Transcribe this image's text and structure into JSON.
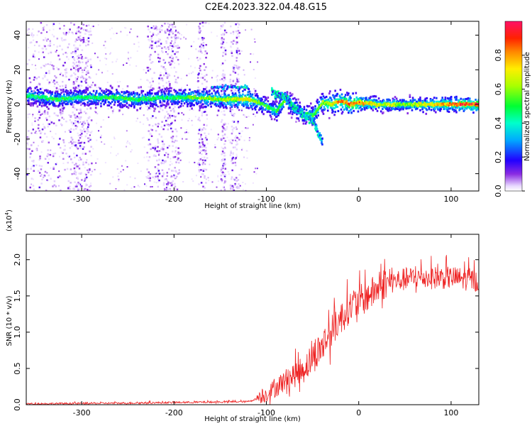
{
  "title": "C2E4.2023.322.04.48.G15",
  "chart_data": [
    {
      "type": "heatmap",
      "xlabel": "Height of straight line (km)",
      "ylabel": "Frequency (Hz)",
      "xlim": [
        -360,
        130
      ],
      "ylim": [
        -50,
        48
      ],
      "x_ticks": [
        -300,
        -200,
        -100,
        0,
        100
      ],
      "y_ticks": [
        -40,
        -20,
        0,
        20,
        40
      ],
      "colorbar": {
        "label": "Normalized spectral amplitude",
        "range": [
          0,
          1
        ],
        "ticks": [
          0.0,
          0.2,
          0.4,
          0.6,
          0.8
        ],
        "colormap": "rainbow"
      },
      "main_track": [
        {
          "x": -355,
          "y": 5,
          "v": 0.45
        },
        {
          "x": -330,
          "y": 3,
          "v": 0.5
        },
        {
          "x": -300,
          "y": 4,
          "v": 0.45
        },
        {
          "x": -270,
          "y": 4,
          "v": 0.5
        },
        {
          "x": -240,
          "y": 3,
          "v": 0.5
        },
        {
          "x": -210,
          "y": 4,
          "v": 0.45
        },
        {
          "x": -180,
          "y": 4,
          "v": 0.55
        },
        {
          "x": -150,
          "y": 3,
          "v": 0.6
        },
        {
          "x": -120,
          "y": 3,
          "v": 0.7
        },
        {
          "x": -105,
          "y": 0,
          "v": 0.5
        },
        {
          "x": -90,
          "y": -4,
          "v": 0.5
        },
        {
          "x": -80,
          "y": 3,
          "v": 0.55
        },
        {
          "x": -70,
          "y": -2,
          "v": 0.5
        },
        {
          "x": -60,
          "y": -6,
          "v": 0.5
        },
        {
          "x": -50,
          "y": -6,
          "v": 0.5
        },
        {
          "x": -40,
          "y": 1,
          "v": 0.6
        },
        {
          "x": -30,
          "y": 0,
          "v": 0.7
        },
        {
          "x": -20,
          "y": 2,
          "v": 0.8
        },
        {
          "x": -10,
          "y": 0,
          "v": 0.85
        },
        {
          "x": 0,
          "y": 1,
          "v": 0.8
        },
        {
          "x": 20,
          "y": 0,
          "v": 0.65
        },
        {
          "x": 50,
          "y": 0,
          "v": 0.6
        },
        {
          "x": 80,
          "y": 0,
          "v": 0.7
        },
        {
          "x": 110,
          "y": 0,
          "v": 0.9
        },
        {
          "x": 128,
          "y": 0,
          "v": 0.9
        }
      ],
      "branch_track": [
        {
          "x": -95,
          "y": 7
        },
        {
          "x": -80,
          "y": 4
        },
        {
          "x": -70,
          "y": -2
        },
        {
          "x": -60,
          "y": -6
        },
        {
          "x": -50,
          "y": -10
        },
        {
          "x": -40,
          "y": -22
        }
      ]
    },
    {
      "type": "line",
      "xlabel": "Height of straight line (km)",
      "ylabel": "SNR (10 * v/v)",
      "y_multiplier": "(x10",
      "y_multiplier_exp": "4",
      "y_multiplier_close": ")",
      "xlim": [
        -360,
        130
      ],
      "ylim": [
        0,
        2.35
      ],
      "x_ticks": [
        -300,
        -200,
        -100,
        0,
        100
      ],
      "y_ticks": [
        0.0,
        0.5,
        1.0,
        1.5,
        2.0
      ],
      "series": [
        {
          "color": "#ee2222",
          "trend": [
            {
              "x": -360,
              "y": 0.01
            },
            {
              "x": -250,
              "y": 0.02
            },
            {
              "x": -120,
              "y": 0.04
            },
            {
              "x": -100,
              "y": 0.12
            },
            {
              "x": -80,
              "y": 0.3
            },
            {
              "x": -60,
              "y": 0.45
            },
            {
              "x": -40,
              "y": 0.75
            },
            {
              "x": -25,
              "y": 1.05
            },
            {
              "x": -10,
              "y": 1.3
            },
            {
              "x": 10,
              "y": 1.45
            },
            {
              "x": 30,
              "y": 1.65
            },
            {
              "x": 60,
              "y": 1.72
            },
            {
              "x": 100,
              "y": 1.72
            },
            {
              "x": 130,
              "y": 1.68
            }
          ]
        }
      ]
    }
  ]
}
